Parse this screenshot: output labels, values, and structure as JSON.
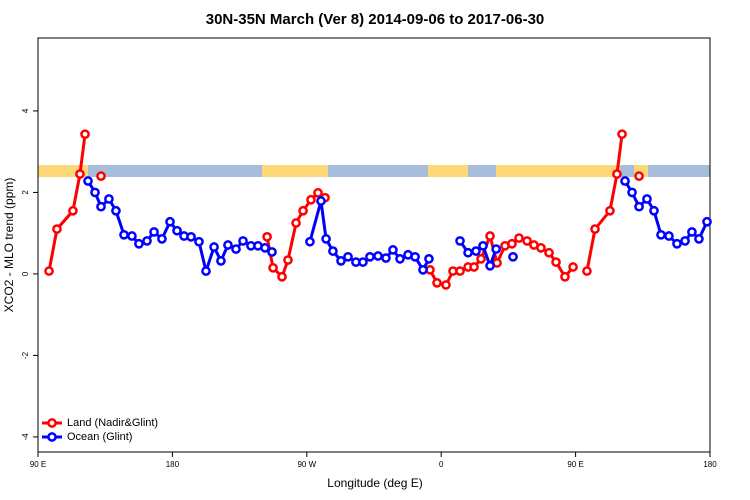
{
  "chart_data": {
    "type": "line",
    "title": "30N-35N March (Ver 8)   2014-09-06 to 2017-06-30",
    "x_label": "Longitude (deg E)",
    "y_label": "XCO2 - MLO trend (ppm)",
    "xlim": [
      90,
      540
    ],
    "ylim": [
      -4.37,
      5.79
    ],
    "xticks": [
      {
        "value": 90,
        "label": "90 E"
      },
      180,
      {
        "value": 270,
        "label": "90 W"
      },
      {
        "value": 360,
        "label": "0"
      },
      {
        "value": 450,
        "label": "90 E"
      },
      {
        "value": 540,
        "label": "180"
      }
    ],
    "yticks": [
      -4,
      -2,
      0,
      2,
      4
    ],
    "legend": "bottomleft",
    "series": [
      {
        "name": "Land (Nadir&Glint)",
        "color": "#ff0000",
        "x": [
          97.4,
          102.7,
          113.4,
          118.1,
          121.5,
          null,
          132.2,
          null,
          243.4,
          247.4,
          253.4,
          257.4,
          262.8,
          267.5,
          272.8,
          277.5,
          282.2,
          null,
          352.5,
          357.2,
          363.2,
          367.9,
          372.6,
          378,
          382,
          386.7,
          392.7,
          397.4,
          402.7,
          407.4,
          412.1,
          417.5,
          422.1,
          426.8,
          432.2,
          436.9,
          442.9,
          448.3,
          null,
          457.6,
          463,
          473,
          477.7,
          481.1,
          null,
          492.5
        ],
        "values": [
          0.07,
          1.1,
          1.55,
          2.45,
          3.43,
          null,
          2.4,
          null,
          0.91,
          0.15,
          -0.07,
          0.34,
          1.25,
          1.55,
          1.82,
          1.99,
          1.87,
          null,
          0.1,
          -0.22,
          -0.27,
          0.07,
          0.07,
          0.17,
          0.17,
          0.37,
          0.93,
          0.27,
          0.69,
          0.74,
          0.88,
          0.81,
          0.71,
          0.64,
          0.52,
          0.29,
          -0.07,
          0.17,
          null,
          0.07,
          1.1,
          1.55,
          2.45,
          3.43,
          null,
          2.4
        ]
      },
      {
        "name": "Ocean (Glint)",
        "color": "#0000ff",
        "x": [
          123.5,
          128.2,
          132.2,
          137.5,
          142.2,
          147.6,
          152.9,
          157.6,
          163,
          167.7,
          173,
          178.4,
          183.1,
          187.8,
          192.5,
          197.8,
          202.5,
          207.9,
          212.5,
          217.2,
          222.6,
          227.3,
          232.6,
          237.3,
          242,
          246.7,
          null,
          272.1,
          279.5,
          282.9,
          287.5,
          292.9,
          297.6,
          302.9,
          307.6,
          312.3,
          317.7,
          323,
          327.7,
          332.4,
          337.8,
          342.5,
          347.8,
          351.8,
          null,
          372.6,
          378,
          383.3,
          388,
          392.7,
          396.8,
          null,
          408.1,
          null,
          483.1,
          487.8,
          492.5,
          497.8,
          502.5,
          507.2,
          512.5,
          517.9,
          523.3,
          527.9,
          532.6,
          538
        ],
        "values": [
          2.28,
          2.0,
          1.65,
          1.84,
          1.55,
          0.96,
          0.93,
          0.74,
          0.81,
          1.03,
          0.86,
          1.28,
          1.06,
          0.93,
          0.91,
          0.79,
          0.07,
          0.66,
          0.32,
          0.71,
          0.61,
          0.81,
          0.69,
          0.69,
          0.64,
          0.54,
          null,
          0.79,
          1.79,
          0.86,
          0.56,
          0.32,
          0.42,
          0.29,
          0.29,
          0.42,
          0.44,
          0.39,
          0.59,
          0.37,
          0.47,
          0.42,
          0.1,
          0.37,
          null,
          0.81,
          0.52,
          0.56,
          0.69,
          0.2,
          0.61,
          null,
          0.42,
          null,
          2.28,
          2.0,
          1.65,
          1.84,
          1.55,
          0.96,
          0.93,
          0.74,
          0.81,
          1.03,
          0.86,
          1.28
        ]
      }
    ]
  }
}
